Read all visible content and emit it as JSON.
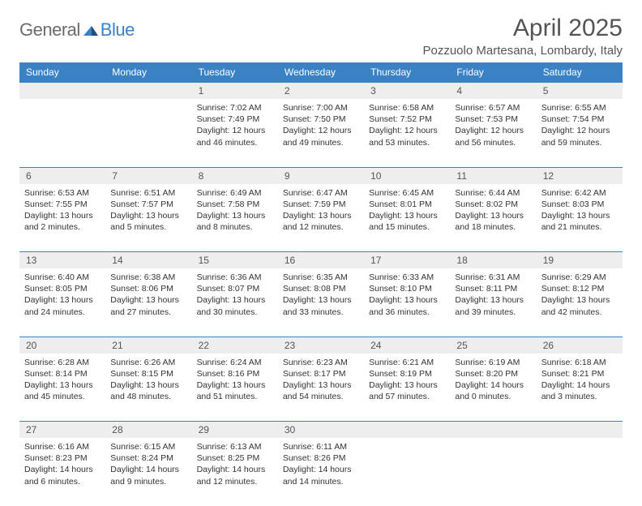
{
  "brand": {
    "part1": "General",
    "part2": "Blue"
  },
  "title": "April 2025",
  "location": "Pozzuolo Martesana, Lombardy, Italy",
  "colors": {
    "header_bg": "#3b82c4",
    "header_text": "#ffffff",
    "daynum_bg": "#eeeeee",
    "border": "#3b82c4",
    "text": "#333333",
    "title_text": "#555555"
  },
  "typography": {
    "title_fontsize": 30,
    "location_fontsize": 15,
    "header_fontsize": 12,
    "cell_fontsize": 10.5
  },
  "weekdays": [
    "Sunday",
    "Monday",
    "Tuesday",
    "Wednesday",
    "Thursday",
    "Friday",
    "Saturday"
  ],
  "weeks": [
    [
      null,
      null,
      {
        "n": "1",
        "sunrise": "7:02 AM",
        "sunset": "7:49 PM",
        "dl": "12 hours and 46 minutes."
      },
      {
        "n": "2",
        "sunrise": "7:00 AM",
        "sunset": "7:50 PM",
        "dl": "12 hours and 49 minutes."
      },
      {
        "n": "3",
        "sunrise": "6:58 AM",
        "sunset": "7:52 PM",
        "dl": "12 hours and 53 minutes."
      },
      {
        "n": "4",
        "sunrise": "6:57 AM",
        "sunset": "7:53 PM",
        "dl": "12 hours and 56 minutes."
      },
      {
        "n": "5",
        "sunrise": "6:55 AM",
        "sunset": "7:54 PM",
        "dl": "12 hours and 59 minutes."
      }
    ],
    [
      {
        "n": "6",
        "sunrise": "6:53 AM",
        "sunset": "7:55 PM",
        "dl": "13 hours and 2 minutes."
      },
      {
        "n": "7",
        "sunrise": "6:51 AM",
        "sunset": "7:57 PM",
        "dl": "13 hours and 5 minutes."
      },
      {
        "n": "8",
        "sunrise": "6:49 AM",
        "sunset": "7:58 PM",
        "dl": "13 hours and 8 minutes."
      },
      {
        "n": "9",
        "sunrise": "6:47 AM",
        "sunset": "7:59 PM",
        "dl": "13 hours and 12 minutes."
      },
      {
        "n": "10",
        "sunrise": "6:45 AM",
        "sunset": "8:01 PM",
        "dl": "13 hours and 15 minutes."
      },
      {
        "n": "11",
        "sunrise": "6:44 AM",
        "sunset": "8:02 PM",
        "dl": "13 hours and 18 minutes."
      },
      {
        "n": "12",
        "sunrise": "6:42 AM",
        "sunset": "8:03 PM",
        "dl": "13 hours and 21 minutes."
      }
    ],
    [
      {
        "n": "13",
        "sunrise": "6:40 AM",
        "sunset": "8:05 PM",
        "dl": "13 hours and 24 minutes."
      },
      {
        "n": "14",
        "sunrise": "6:38 AM",
        "sunset": "8:06 PM",
        "dl": "13 hours and 27 minutes."
      },
      {
        "n": "15",
        "sunrise": "6:36 AM",
        "sunset": "8:07 PM",
        "dl": "13 hours and 30 minutes."
      },
      {
        "n": "16",
        "sunrise": "6:35 AM",
        "sunset": "8:08 PM",
        "dl": "13 hours and 33 minutes."
      },
      {
        "n": "17",
        "sunrise": "6:33 AM",
        "sunset": "8:10 PM",
        "dl": "13 hours and 36 minutes."
      },
      {
        "n": "18",
        "sunrise": "6:31 AM",
        "sunset": "8:11 PM",
        "dl": "13 hours and 39 minutes."
      },
      {
        "n": "19",
        "sunrise": "6:29 AM",
        "sunset": "8:12 PM",
        "dl": "13 hours and 42 minutes."
      }
    ],
    [
      {
        "n": "20",
        "sunrise": "6:28 AM",
        "sunset": "8:14 PM",
        "dl": "13 hours and 45 minutes."
      },
      {
        "n": "21",
        "sunrise": "6:26 AM",
        "sunset": "8:15 PM",
        "dl": "13 hours and 48 minutes."
      },
      {
        "n": "22",
        "sunrise": "6:24 AM",
        "sunset": "8:16 PM",
        "dl": "13 hours and 51 minutes."
      },
      {
        "n": "23",
        "sunrise": "6:23 AM",
        "sunset": "8:17 PM",
        "dl": "13 hours and 54 minutes."
      },
      {
        "n": "24",
        "sunrise": "6:21 AM",
        "sunset": "8:19 PM",
        "dl": "13 hours and 57 minutes."
      },
      {
        "n": "25",
        "sunrise": "6:19 AM",
        "sunset": "8:20 PM",
        "dl": "14 hours and 0 minutes."
      },
      {
        "n": "26",
        "sunrise": "6:18 AM",
        "sunset": "8:21 PM",
        "dl": "14 hours and 3 minutes."
      }
    ],
    [
      {
        "n": "27",
        "sunrise": "6:16 AM",
        "sunset": "8:23 PM",
        "dl": "14 hours and 6 minutes."
      },
      {
        "n": "28",
        "sunrise": "6:15 AM",
        "sunset": "8:24 PM",
        "dl": "14 hours and 9 minutes."
      },
      {
        "n": "29",
        "sunrise": "6:13 AM",
        "sunset": "8:25 PM",
        "dl": "14 hours and 12 minutes."
      },
      {
        "n": "30",
        "sunrise": "6:11 AM",
        "sunset": "8:26 PM",
        "dl": "14 hours and 14 minutes."
      },
      null,
      null,
      null
    ]
  ],
  "labels": {
    "sunrise": "Sunrise:",
    "sunset": "Sunset:",
    "daylight": "Daylight:"
  }
}
